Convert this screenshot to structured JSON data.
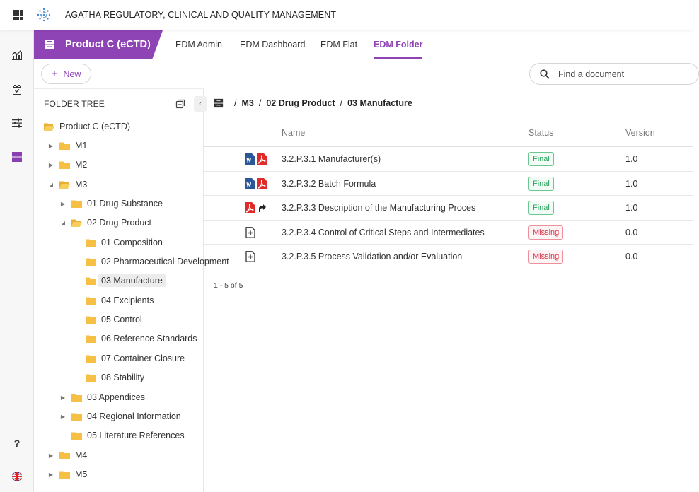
{
  "header": {
    "app_title": "AGATHA REGULATORY, CLINICAL AND QUALITY MANAGEMENT"
  },
  "rail": {
    "help": "?"
  },
  "tabs": {
    "product": "Product C (eCTD)",
    "items": [
      "EDM Admin",
      "EDM Dashboard",
      "EDM Flat",
      "EDM Folder"
    ],
    "active": "EDM Folder"
  },
  "toolbar": {
    "new_label": "New",
    "search_placeholder": "Find a document"
  },
  "tree": {
    "title": "FOLDER TREE",
    "nodes": [
      {
        "label": "Product C (eCTD)",
        "caret": "",
        "open": true
      },
      {
        "label": "M1",
        "caret": "▶"
      },
      {
        "label": "M2",
        "caret": "▶"
      },
      {
        "label": "M3",
        "caret": "◢",
        "open": true
      },
      {
        "label": "01 Drug Substance",
        "caret": "▶"
      },
      {
        "label": "02 Drug Product",
        "caret": "◢",
        "open": true
      },
      {
        "label": "01 Composition",
        "caret": ""
      },
      {
        "label": "02 Pharmaceutical Development",
        "caret": ""
      },
      {
        "label": "03 Manufacture",
        "caret": "",
        "selected": true
      },
      {
        "label": "04 Excipients",
        "caret": ""
      },
      {
        "label": "05 Control",
        "caret": ""
      },
      {
        "label": "06 Reference Standards",
        "caret": ""
      },
      {
        "label": "07 Container Closure",
        "caret": ""
      },
      {
        "label": "08 Stability",
        "caret": ""
      },
      {
        "label": "03 Appendices",
        "caret": "▶"
      },
      {
        "label": "04 Regional Information",
        "caret": "▶"
      },
      {
        "label": "05 Literature References",
        "caret": ""
      },
      {
        "label": "M4",
        "caret": "▶"
      },
      {
        "label": "M5",
        "caret": "▶"
      }
    ]
  },
  "breadcrumb": {
    "sep": "/",
    "items": [
      "M3",
      "02 Drug Product",
      "03 Manufacture"
    ]
  },
  "grid": {
    "columns": {
      "name": "Name",
      "status": "Status",
      "version": "Version"
    },
    "rows": [
      {
        "name": "3.2.P.3.1 Manufacturer(s)",
        "status": "Final",
        "version": "1.0",
        "icons": [
          "word-icon",
          "pdf-icon"
        ]
      },
      {
        "name": "3.2.P.3.2 Batch Formula",
        "status": "Final",
        "version": "1.0",
        "icons": [
          "word-icon",
          "pdf-icon"
        ]
      },
      {
        "name": "3.2.P.3.3 Description of the Manufacturing Proces",
        "status": "Final",
        "version": "1.0",
        "icons": [
          "pdf-icon",
          "shortcut-arrow-icon"
        ]
      },
      {
        "name": "3.2.P.3.4 Control of Critical Steps and Intermediates",
        "status": "Missing",
        "version": "0.0",
        "icons": [
          "add-document-icon"
        ]
      },
      {
        "name": "3.2.P.3.5 Process Validation and/or Evaluation",
        "status": "Missing",
        "version": "0.0",
        "icons": [
          "add-document-icon"
        ]
      }
    ],
    "pager": "1 - 5 of 5"
  },
  "colors": {
    "accent": "#8e44b5",
    "final": "#27a35b",
    "missing": "#d9334a",
    "folder": "#f5c043"
  }
}
